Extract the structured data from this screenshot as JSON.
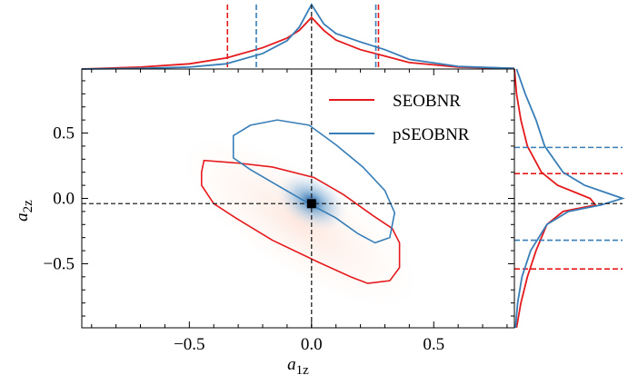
{
  "chart_data": {
    "type": "contour",
    "xlabel": "a",
    "xlabel_sub": "1z",
    "ylabel": "a",
    "ylabel_sub": "2z",
    "xlim": [
      -0.94,
      0.83
    ],
    "ylim": [
      -0.99,
      0.99
    ],
    "xticks": [
      {
        "value": -0.5,
        "label": "−0.5"
      },
      {
        "value": 0,
        "label": "0.0"
      },
      0.5
    ],
    "yticks": [
      {
        "value": -0.5,
        "label": "−0.5"
      },
      {
        "value": 0,
        "label": "0.0"
      },
      0.5
    ],
    "xminorticks": [
      -0.9,
      -0.8,
      -0.7,
      -0.6,
      -0.4,
      -0.3,
      -0.2,
      -0.1,
      0.1,
      0.2,
      0.3,
      0.4,
      0.6,
      0.7,
      0.8
    ],
    "yminorticks": [
      -0.9,
      -0.8,
      -0.7,
      -0.6,
      -0.4,
      -0.3,
      -0.2,
      -0.1,
      0.1,
      0.2,
      0.3,
      0.4,
      0.6,
      0.7,
      0.8,
      0.9
    ],
    "legend": "upper right",
    "density_lim": [
      0,
      1
    ],
    "marginal_x": [
      -0.94,
      -0.7,
      -0.5,
      -0.35,
      -0.2,
      -0.1,
      -0.05,
      0,
      0.05,
      0.1,
      0.2,
      0.3,
      0.4,
      0.6,
      0.83
    ],
    "marginal_y": [
      0.99,
      0.8,
      0.6,
      0.4,
      0.2,
      0.1,
      0.0,
      -0.05,
      -0.1,
      -0.2,
      -0.4,
      -0.6,
      -0.8,
      -0.99
    ],
    "injection": {
      "x": 0,
      "y": -0.04
    },
    "series": [
      {
        "name": "SEOBNR",
        "color": "#e41a1c",
        "contour_x": [
          -0.45,
          -0.44,
          -0.3,
          -0.16,
          0.01,
          0.13,
          0.25,
          0.33,
          0.36,
          0.36,
          0.32,
          0.23,
          0.16,
          0.03,
          -0.16,
          -0.31,
          -0.4,
          -0.45
        ],
        "contour_y": [
          0.2,
          0.29,
          0.27,
          0.24,
          0.16,
          0.03,
          -0.13,
          -0.23,
          -0.34,
          -0.53,
          -0.63,
          -0.65,
          -0.6,
          -0.49,
          -0.32,
          -0.15,
          -0.04,
          0.1
        ],
        "x_interval": [
          -0.344,
          0.274
        ],
        "y_interval": [
          -0.54,
          0.19
        ],
        "x_density": [
          0,
          0.03,
          0.08,
          0.17,
          0.33,
          0.48,
          0.6,
          0.8,
          0.6,
          0.45,
          0.3,
          0.2,
          0.1,
          0.03,
          0.01
        ],
        "y_density": [
          0,
          0.02,
          0.06,
          0.12,
          0.25,
          0.4,
          0.7,
          0.75,
          0.45,
          0.3,
          0.2,
          0.12,
          0.06,
          0.02
        ]
      },
      {
        "name": "pSEOBNR",
        "color": "#377eb8",
        "contour_x": [
          -0.32,
          -0.25,
          -0.14,
          -0.01,
          0.1,
          0.21,
          0.3,
          0.34,
          0.32,
          0.26,
          0.19,
          0.1,
          -0.01,
          -0.14,
          -0.25,
          -0.32
        ],
        "contour_y": [
          0.48,
          0.56,
          0.6,
          0.56,
          0.41,
          0.24,
          0.06,
          -0.11,
          -0.3,
          -0.34,
          -0.27,
          -0.15,
          -0.04,
          0.1,
          0.22,
          0.31
        ],
        "x_interval": [
          -0.226,
          0.263
        ],
        "y_interval": [
          -0.32,
          0.39
        ],
        "x_density": [
          0,
          0.01,
          0.03,
          0.08,
          0.24,
          0.44,
          0.65,
          1.0,
          0.7,
          0.55,
          0.42,
          0.3,
          0.15,
          0.04,
          0.01
        ],
        "y_density": [
          0.02,
          0.1,
          0.2,
          0.28,
          0.45,
          0.65,
          1.0,
          0.8,
          0.5,
          0.3,
          0.15,
          0.07,
          0.03,
          0.01
        ]
      }
    ]
  }
}
